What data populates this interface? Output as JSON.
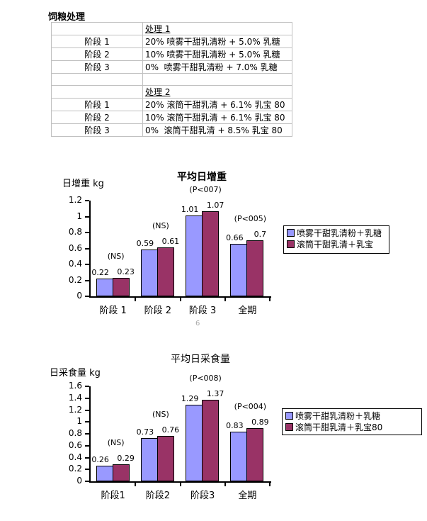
{
  "page": {
    "number_label": "6"
  },
  "colors": {
    "series1": "#9999ff",
    "series2": "#993366",
    "table_border": "#c0c0c0",
    "page_number_gray": "#aaaaaa"
  },
  "table": {
    "title": "饲粮处理",
    "rows": [
      {
        "stage": "",
        "desc": "处理 1",
        "underline": true
      },
      {
        "stage": "阶段 1",
        "desc": "20% 喷雾干甜乳清粉 + 5.0% 乳糖",
        "underline": false
      },
      {
        "stage": "阶段 2",
        "desc": "10% 喷雾干甜乳清粉 + 5.0% 乳糖",
        "underline": false
      },
      {
        "stage": "阶段 3",
        "desc": "0%  喷雾干甜乳清粉 + 7.0% 乳糖",
        "underline": false
      },
      {
        "stage": "",
        "desc": "",
        "underline": false
      },
      {
        "stage": "",
        "desc": "处理 2",
        "underline": true
      },
      {
        "stage": "阶段 1",
        "desc": "20% 滚筒干甜乳清 + 6.1% 乳宝 80",
        "underline": false
      },
      {
        "stage": "阶段 2",
        "desc": "10% 滚筒干甜乳清 + 6.1% 乳宝 80",
        "underline": false
      },
      {
        "stage": "阶段 3",
        "desc": "0%  滚筒干甜乳清 + 8.5% 乳宝 80",
        "underline": false
      }
    ]
  },
  "chart_data": [
    {
      "type": "bar",
      "title": "平均日增重",
      "title_bold": true,
      "ylabel": "日增重 kg",
      "xlabel": "",
      "categories": [
        "阶段 1",
        "阶段 2",
        "阶段 3",
        "全期"
      ],
      "series": [
        {
          "name": "喷雾干甜乳清粉＋乳糖",
          "color": "#9999ff",
          "values": [
            0.22,
            0.59,
            1.01,
            0.66
          ]
        },
        {
          "name": "滚筒干甜乳清＋乳宝",
          "color": "#993366",
          "values": [
            0.23,
            0.61,
            1.07,
            0.7
          ]
        }
      ],
      "annotations": [
        "(NS)",
        "(NS)",
        "(P<007)",
        "(P<005)"
      ],
      "ylim": [
        0,
        1.2
      ],
      "yticks": [
        "0",
        "0.2",
        "0.4",
        "0.6",
        "0.8",
        "1",
        "1.2"
      ],
      "grid": false,
      "legend_position": "right"
    },
    {
      "type": "bar",
      "title": "平均日采食量",
      "title_bold": false,
      "ylabel": "日采食量 kg",
      "xlabel": "",
      "categories": [
        "阶段1",
        "阶段2",
        "阶段3",
        "全期"
      ],
      "series": [
        {
          "name": "喷雾干甜乳清粉＋乳糖",
          "color": "#9999ff",
          "values": [
            0.26,
            0.73,
            1.29,
            0.83
          ]
        },
        {
          "name": "滚筒干甜乳清＋乳宝80",
          "color": "#993366",
          "values": [
            0.29,
            0.76,
            1.37,
            0.89
          ]
        }
      ],
      "annotations": [
        "(NS)",
        "(NS)",
        "(P<008)",
        "(P<004)"
      ],
      "ylim": [
        0,
        1.6
      ],
      "yticks": [
        "0",
        "0.2",
        "0.4",
        "0.6",
        "0.8",
        "1",
        "1.2",
        "1.4",
        "1.6"
      ],
      "grid": false,
      "legend_position": "right"
    }
  ]
}
